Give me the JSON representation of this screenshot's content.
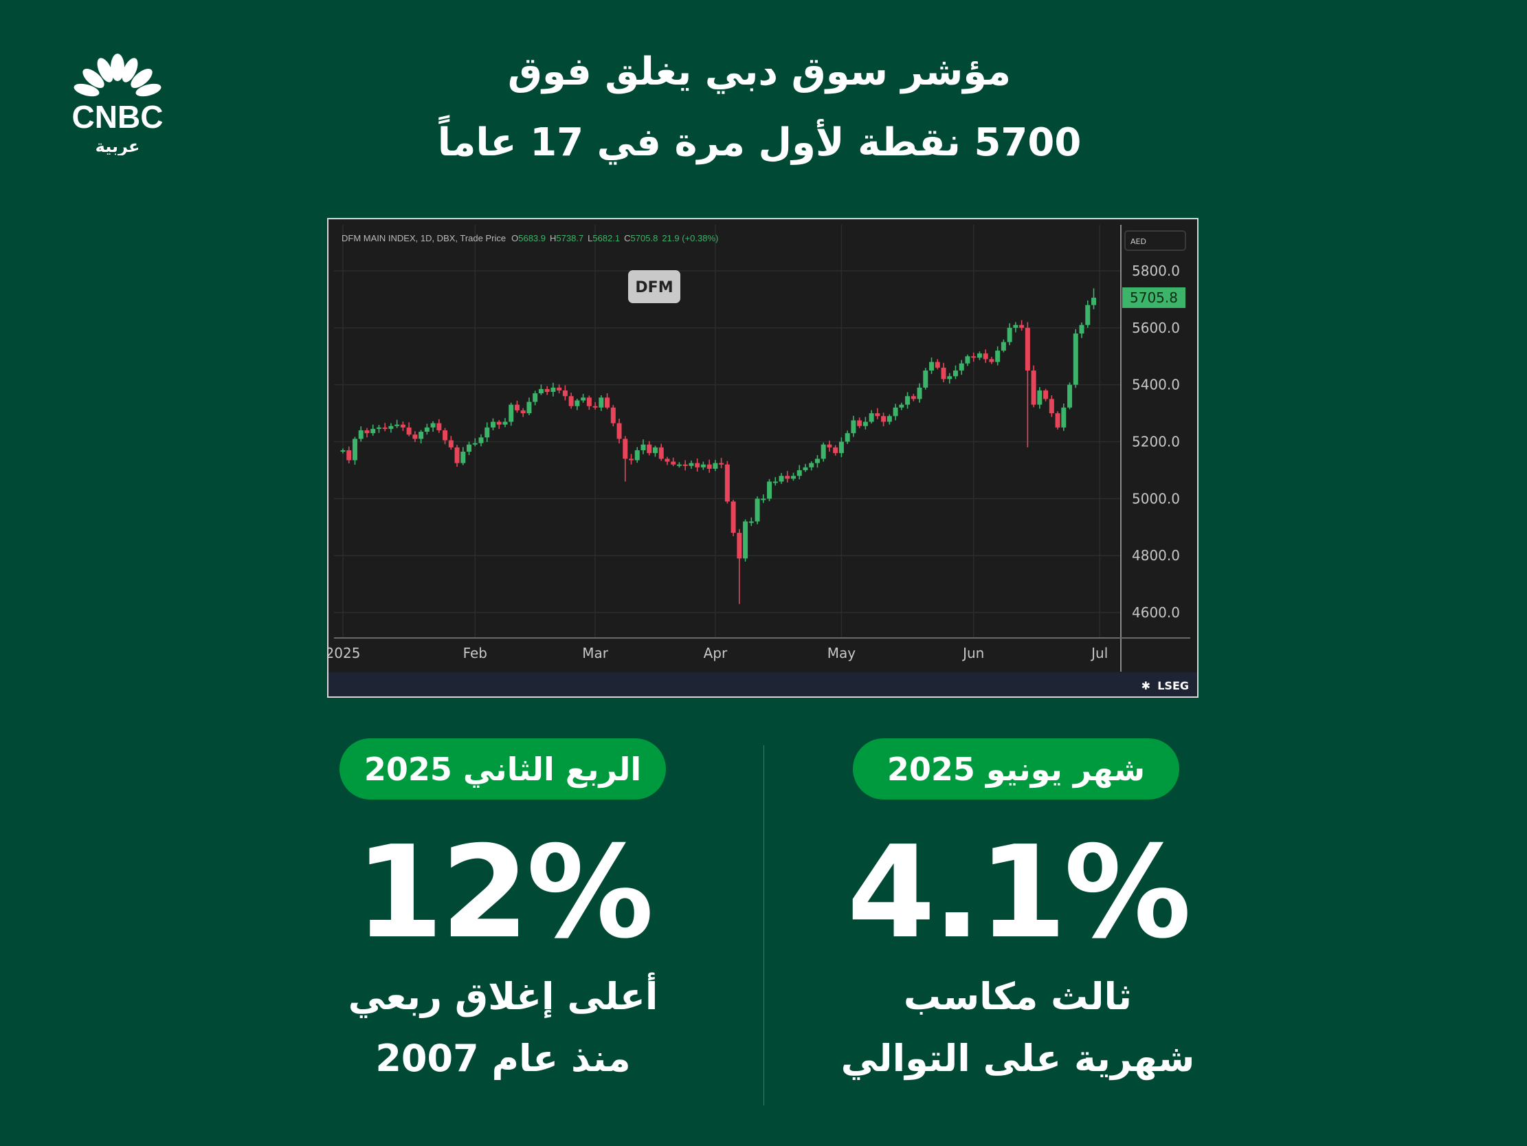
{
  "brand": {
    "logo_text": "CNBC",
    "logo_sub": "عربية"
  },
  "title": {
    "line1": "مؤشر سوق دبي يغلق فوق",
    "line2": "5700 نقطة لأول مرة في 17 عاماً"
  },
  "colors": {
    "background": "#004a35",
    "pill": "#009a3e",
    "up": "#3cb46a",
    "down": "#e8455b"
  },
  "chart_data": {
    "type": "candlestick",
    "title": "DFM MAIN INDEX, 1D, DBX, Trade Price",
    "ohlc_header": {
      "o_label": "O",
      "o": "5683.9",
      "h_label": "H",
      "h": "5738.7",
      "l_label": "L",
      "l": "5682.1",
      "c_label": "C",
      "c": "5705.8",
      "change": "21.9 (+0.38%)"
    },
    "badge": "DFM",
    "currency": "AED",
    "last_price": "5705.8",
    "source": "LSEG",
    "ylim": [
      4540,
      5870
    ],
    "y_ticks": [
      "5800.0",
      "5600.0",
      "5400.0",
      "5200.0",
      "5000.0",
      "4800.0",
      "4600.0"
    ],
    "y_tick_values": [
      5800,
      5600,
      5400,
      5200,
      5000,
      4800,
      4600
    ],
    "x_ticks": [
      {
        "label": "2025",
        "index": 0
      },
      {
        "label": "Feb",
        "index": 22
      },
      {
        "label": "Mar",
        "index": 42
      },
      {
        "label": "Apr",
        "index": 62
      },
      {
        "label": "May",
        "index": 83
      },
      {
        "label": "Jun",
        "index": 105
      },
      {
        "label": "Jul",
        "index": 126
      }
    ],
    "first_open": 5165,
    "closes": [
      5170,
      5135,
      5210,
      5240,
      5230,
      5245,
      5250,
      5245,
      5255,
      5260,
      5250,
      5225,
      5210,
      5235,
      5250,
      5265,
      5240,
      5205,
      5180,
      5125,
      5165,
      5190,
      5195,
      5215,
      5250,
      5270,
      5260,
      5270,
      5330,
      5310,
      5300,
      5340,
      5370,
      5385,
      5375,
      5390,
      5380,
      5360,
      5325,
      5345,
      5355,
      5325,
      5320,
      5355,
      5320,
      5265,
      5210,
      5140,
      5135,
      5170,
      5190,
      5160,
      5180,
      5140,
      5130,
      5120,
      5120,
      5115,
      5125,
      5110,
      5120,
      5105,
      5125,
      5120,
      4990,
      4880,
      4790,
      4920,
      4920,
      5000,
      5000,
      5060,
      5060,
      5080,
      5070,
      5080,
      5100,
      5110,
      5125,
      5140,
      5190,
      5180,
      5160,
      5200,
      5230,
      5275,
      5255,
      5270,
      5300,
      5290,
      5270,
      5290,
      5320,
      5330,
      5360,
      5350,
      5390,
      5450,
      5480,
      5460,
      5420,
      5430,
      5450,
      5475,
      5500,
      5495,
      5510,
      5490,
      5480,
      5520,
      5550,
      5600,
      5610,
      5600,
      5450,
      5330,
      5380,
      5350,
      5300,
      5250,
      5320,
      5400,
      5580,
      5610,
      5680,
      5705.8
    ],
    "low_overrides": {
      "47": 5060,
      "66": 4630,
      "114": 5180
    },
    "high_overrides": {
      "114": 5620,
      "125": 5738.7
    }
  },
  "stats": [
    {
      "pill": "الربع الثاني 2025",
      "value": "12%",
      "line1": "أعلى إغلاق ربعي",
      "line2": "منذ عام 2007"
    },
    {
      "pill": "شهر يونيو 2025",
      "value": "4.1%",
      "line1": "ثالث مكاسب",
      "line2": "شهرية على التوالي"
    }
  ]
}
